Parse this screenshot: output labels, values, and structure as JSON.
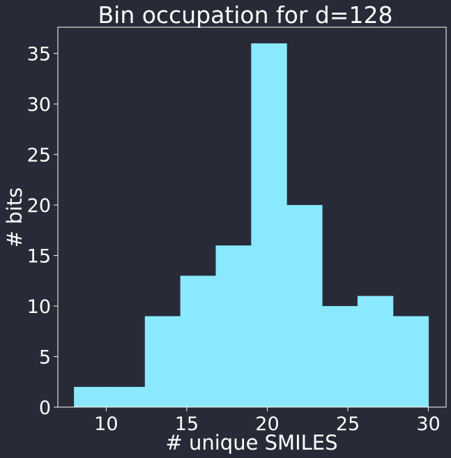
{
  "chart_data": {
    "type": "bar",
    "title": "Bin occupation for d=128",
    "xlabel": "# unique SMILES",
    "ylabel": "# bits",
    "bin_edges": [
      8,
      10.2,
      12.4,
      14.6,
      16.8,
      19,
      21.2,
      23.4,
      25.6,
      27.8,
      30
    ],
    "values": [
      2,
      2,
      9,
      13,
      16,
      36,
      20,
      10,
      11,
      9
    ],
    "xlim": [
      7,
      31.1
    ],
    "ylim": [
      0,
      37.6
    ],
    "xticks": [
      10,
      15,
      20,
      25,
      30
    ],
    "yticks": [
      0,
      5,
      10,
      15,
      20,
      25,
      30,
      35
    ],
    "bar_color": "#8ae9fe",
    "background_color": "#282b37",
    "axis_color": "#ffffff",
    "grid": false
  }
}
